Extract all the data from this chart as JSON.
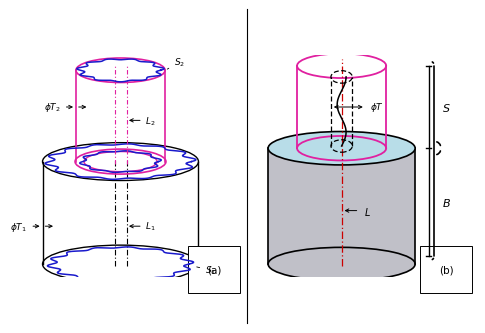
{
  "fig_width": 4.74,
  "fig_height": 3.27,
  "dpi": 100,
  "magenta": "#e020a0",
  "blue": "#1a1acc",
  "black": "#111111",
  "red_dash": "#cc0000",
  "gray_fill": "#c0c0c8",
  "light_blue": "#b8dde8",
  "label_a": "(a)",
  "label_b": "(b)",
  "s1_label": "$S_1$",
  "s2_label": "$S_2$",
  "phi_t1": "$\\phi T_1$",
  "phi_t2": "$\\phi T_2$",
  "phi_t": "$\\phi T$",
  "l1_label": "$L_1$",
  "l2_label": "$L_2$",
  "l_label": "$L$",
  "s_label": "$S$",
  "b_label": "$B$"
}
